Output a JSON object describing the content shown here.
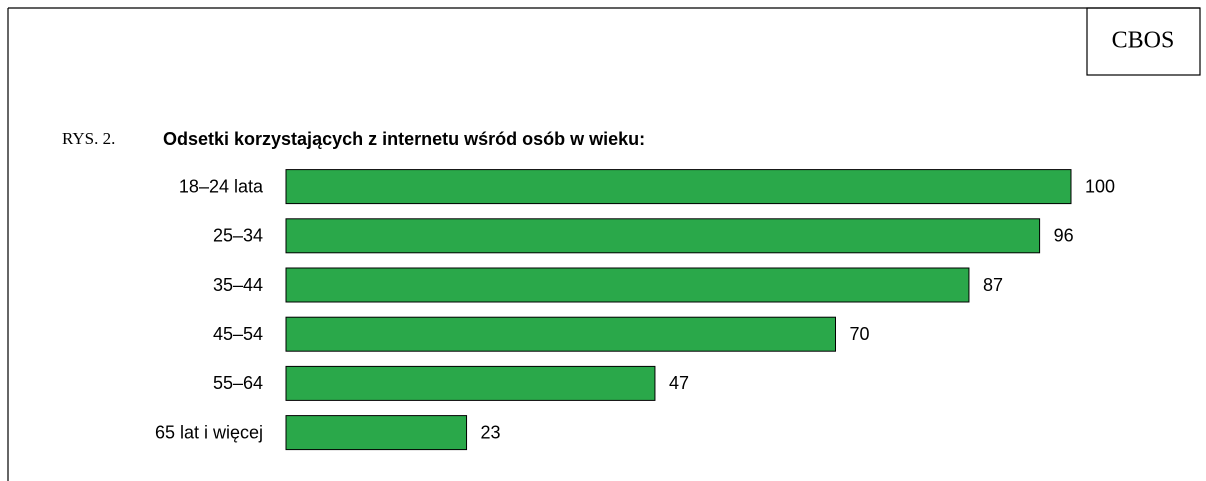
{
  "chart_data": {
    "type": "bar",
    "orientation": "horizontal",
    "badge": "CBOS",
    "figure_label": "RYS. 2.",
    "title": "Odsetki korzystających z internetu wśród osób w wieku:",
    "categories": [
      "18–24 lata",
      "25–34",
      "35–44",
      "45–54",
      "55–64",
      "65 lat i więcej"
    ],
    "values": [
      100,
      96,
      87,
      70,
      47,
      23
    ],
    "color": "#2aa84a",
    "xlim": [
      0,
      100
    ]
  }
}
